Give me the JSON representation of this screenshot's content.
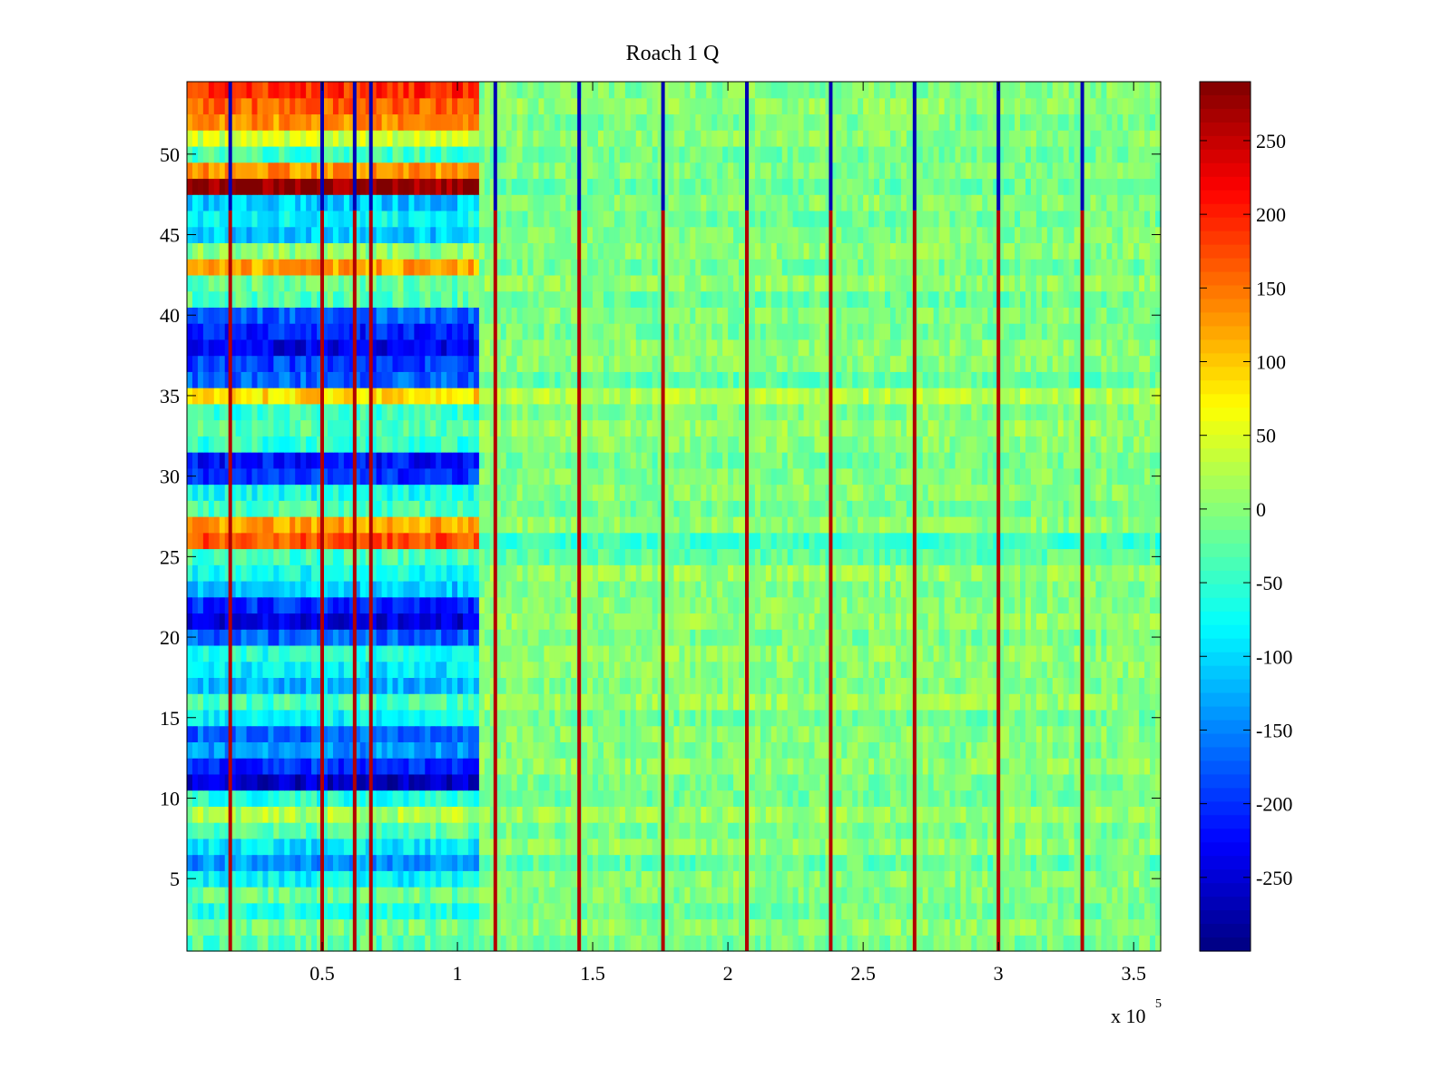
{
  "chart_data": {
    "type": "heatmap",
    "title": "Roach 1 Q",
    "xlabel": "",
    "ylabel": "",
    "x_multiplier_label": "x 10",
    "x_multiplier_exponent": "5",
    "xlim": [
      0,
      3.6
    ],
    "ylim": [
      0.5,
      54.5
    ],
    "x_ticks": [
      0.5,
      1,
      1.5,
      2,
      2.5,
      3,
      3.5
    ],
    "x_tick_labels": [
      "0.5",
      "1",
      "1.5",
      "2",
      "2.5",
      "3",
      "3.5"
    ],
    "y_ticks": [
      5,
      10,
      15,
      20,
      25,
      30,
      35,
      40,
      45,
      50
    ],
    "y_tick_labels": [
      "5",
      "10",
      "15",
      "20",
      "25",
      "30",
      "35",
      "40",
      "45",
      "50"
    ],
    "rows": 54,
    "colorbar": {
      "colormap": "jet",
      "range": [
        -300,
        290
      ],
      "ticks": [
        250,
        200,
        150,
        100,
        50,
        0,
        -50,
        -100,
        -150,
        -200,
        -250
      ],
      "tick_labels": [
        "250",
        "200",
        "150",
        "100",
        "50",
        "0",
        "-50",
        "-100",
        "-150",
        "-200",
        "-250"
      ]
    },
    "regions": {
      "structured_until_x": 1.08,
      "background_level": -5,
      "row_offsets_left": [
        -30,
        -10,
        -60,
        -20,
        -80,
        -140,
        -90,
        -30,
        20,
        -60,
        -260,
        -200,
        -140,
        -170,
        -80,
        -40,
        -120,
        -90,
        -60,
        -170,
        -250,
        -200,
        -110,
        -70,
        -40,
        170,
        120,
        -40,
        -70,
        -200,
        -220,
        -50,
        -30,
        -50,
        90,
        -170,
        -190,
        -240,
        -210,
        -170,
        -30,
        -20,
        120,
        0,
        -110,
        -80,
        -110,
        280,
        130,
        -40,
        40,
        130,
        160,
        190
      ],
      "row_offsets_right": [
        -5,
        10,
        -10,
        0,
        5,
        -20,
        10,
        -5,
        15,
        -10,
        -5,
        10,
        0,
        5,
        -10,
        15,
        0,
        5,
        10,
        -5,
        10,
        5,
        0,
        15,
        -20,
        -40,
        10,
        -10,
        5,
        0,
        -10,
        5,
        15,
        0,
        30,
        -20,
        5,
        10,
        -5,
        0,
        -15,
        10,
        -10,
        5,
        0,
        -10,
        5,
        -15,
        0,
        -10,
        5,
        -5,
        10,
        0
      ]
    },
    "stripes": {
      "x_positions": [
        0.16,
        0.5,
        0.62,
        0.68,
        1.14,
        1.45,
        1.76,
        2.07,
        2.38,
        2.69,
        3.0,
        3.31
      ],
      "top_cold_row_from": 47
    }
  }
}
